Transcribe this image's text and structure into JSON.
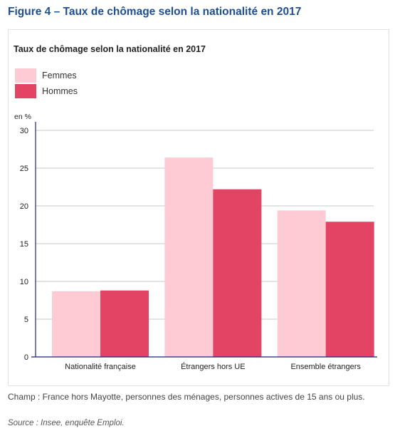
{
  "figure": {
    "title": "Figure 4 – Taux de chômage selon la nationalité en 2017",
    "note": "Champ : France hors Mayotte, personnes des ménages, personnes actives de 15 ans ou plus.",
    "source": "Source : Insee, enquête Emploi."
  },
  "colors": {
    "femmes": "#fecbd5",
    "hommes": "#e34463",
    "axis": "#1a237e",
    "grid": "#c8c8c8"
  },
  "chart_data": {
    "type": "bar",
    "title": "Taux de chômage selon la nationalité en 2017",
    "ylabel": "en %",
    "xlabel": "",
    "ylim": [
      0,
      30
    ],
    "yticks": [
      0,
      5,
      10,
      15,
      20,
      25,
      30
    ],
    "grid": true,
    "legend_position": "top-left",
    "categories": [
      "Nationalité française",
      "Étrangers hors UE",
      "Ensemble étrangers"
    ],
    "series": [
      {
        "name": "Femmes",
        "values": [
          8.7,
          26.4,
          19.4
        ]
      },
      {
        "name": "Hommes",
        "values": [
          8.8,
          22.2,
          17.9
        ]
      }
    ]
  }
}
